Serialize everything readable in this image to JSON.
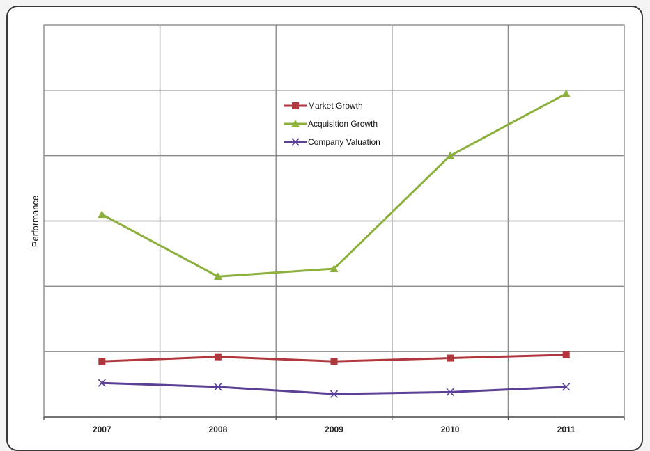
{
  "chart_data": {
    "type": "line",
    "title": "",
    "xlabel": "",
    "ylabel": "Performance",
    "categories": [
      "2007",
      "2008",
      "2009",
      "2010",
      "2011"
    ],
    "ylim": [
      0,
      6
    ],
    "y_ticks_labeled": false,
    "grid": true,
    "legend_position": "top-center",
    "series": [
      {
        "name": "Market Growth",
        "color": "#b0373d",
        "marker": "square",
        "values": [
          0.85,
          0.92,
          0.85,
          0.9,
          0.95
        ]
      },
      {
        "name": "Acquisition Growth",
        "color": "#8cb03c",
        "marker": "triangle",
        "values": [
          3.1,
          2.15,
          2.27,
          4.0,
          4.95
        ]
      },
      {
        "name": "Company Valuation",
        "color": "#5a3f95",
        "marker": "x",
        "values": [
          0.52,
          0.46,
          0.35,
          0.38,
          0.46
        ]
      }
    ]
  }
}
